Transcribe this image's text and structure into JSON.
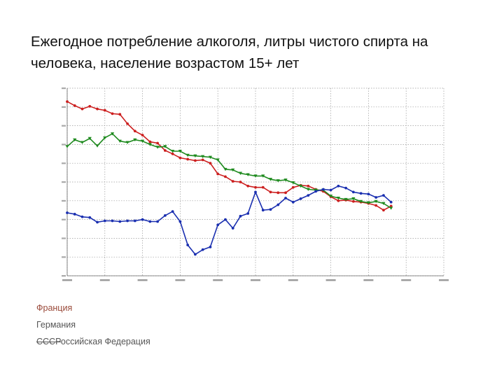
{
  "title": "Ежегодное потребление алкоголя, литры чистого спирта на человека, население возрастом 15+ лет",
  "legend": {
    "france": "Франция",
    "germany": "Германия",
    "russia_prefix": "СССР",
    "russia_rest": "оссийская Федерация"
  },
  "colors": {
    "france": "#cc1f1f",
    "germany": "#1e8a1e",
    "russia": "#1a2fb0",
    "grid": "#9a9a9a"
  },
  "chart_data": {
    "type": "line",
    "xlim": [
      1970,
      2020
    ],
    "ylim": [
      0,
      28
    ],
    "grid": true,
    "series": [
      {
        "key": "france",
        "x": [
          1970,
          1971,
          1972,
          1973,
          1974,
          1975,
          1976,
          1977,
          1978,
          1979,
          1980,
          1981,
          1982,
          1983,
          1984,
          1985,
          1986,
          1987,
          1988,
          1989,
          1990,
          1991,
          1992,
          1993,
          1994,
          1995,
          1996,
          1997,
          1998,
          1999,
          2000,
          2001,
          2002,
          2003,
          2004,
          2005,
          2006,
          2007,
          2008,
          2009,
          2010,
          2011,
          2012,
          2013
        ],
        "values": [
          26,
          25.4,
          24.9,
          25.3,
          24.9,
          24.7,
          24.2,
          24.1,
          22.7,
          21.6,
          21.0,
          20.0,
          19.8,
          18.7,
          18.2,
          17.6,
          17.4,
          17.2,
          17.3,
          16.8,
          15.2,
          14.8,
          14.1,
          14.0,
          13.4,
          13.2,
          13.2,
          12.5,
          12.4,
          12.4,
          13.2,
          13.5,
          13.4,
          12.9,
          12.6,
          11.8,
          11.2,
          11.3,
          11.1,
          11.0,
          10.8,
          10.5,
          9.8,
          10.4
        ]
      },
      {
        "key": "germany",
        "x": [
          1970,
          1971,
          1972,
          1973,
          1974,
          1975,
          1976,
          1977,
          1978,
          1979,
          1980,
          1981,
          1982,
          1983,
          1984,
          1985,
          1986,
          1987,
          1988,
          1989,
          1990,
          1991,
          1992,
          1993,
          1994,
          1995,
          1996,
          1997,
          1998,
          1999,
          2000,
          2001,
          2002,
          2003,
          2004,
          2005,
          2006,
          2007,
          2008,
          2009,
          2010,
          2011,
          2012,
          2013
        ],
        "values": [
          19.3,
          20.3,
          19.9,
          20.5,
          19.4,
          20.6,
          21.2,
          20.1,
          19.9,
          20.3,
          20.1,
          19.6,
          19.2,
          19.3,
          18.6,
          18.6,
          18.0,
          17.9,
          17.8,
          17.7,
          17.3,
          15.9,
          15.8,
          15.3,
          15.1,
          14.9,
          14.9,
          14.4,
          14.2,
          14.3,
          13.9,
          13.4,
          12.9,
          12.8,
          12.8,
          11.9,
          11.6,
          11.4,
          11.5,
          11.1,
          10.9,
          11.1,
          10.8,
          10.1
        ]
      },
      {
        "key": "russia",
        "x": [
          1970,
          1971,
          1972,
          1973,
          1974,
          1975,
          1976,
          1977,
          1978,
          1979,
          1980,
          1981,
          1982,
          1983,
          1984,
          1985,
          1986,
          1987,
          1988,
          1989,
          1990,
          1991,
          1992,
          1993,
          1994,
          1995,
          1996,
          1997,
          1998,
          1999,
          2000,
          2001,
          2002,
          2003,
          2004,
          2005,
          2006,
          2007,
          2008,
          2009,
          2010,
          2011,
          2012,
          2013
        ],
        "values": [
          9.4,
          9.2,
          8.8,
          8.7,
          8.0,
          8.2,
          8.2,
          8.1,
          8.2,
          8.2,
          8.4,
          8.1,
          8.1,
          9.0,
          9.6,
          8.1,
          4.6,
          3.2,
          3.9,
          4.3,
          7.6,
          8.4,
          7.1,
          8.9,
          9.3,
          12.5,
          9.8,
          9.9,
          10.6,
          11.6,
          11.0,
          11.5,
          12.0,
          12.6,
          12.9,
          12.8,
          13.4,
          13.1,
          12.5,
          12.3,
          12.2,
          11.7,
          12.0,
          11.0
        ]
      }
    ]
  }
}
